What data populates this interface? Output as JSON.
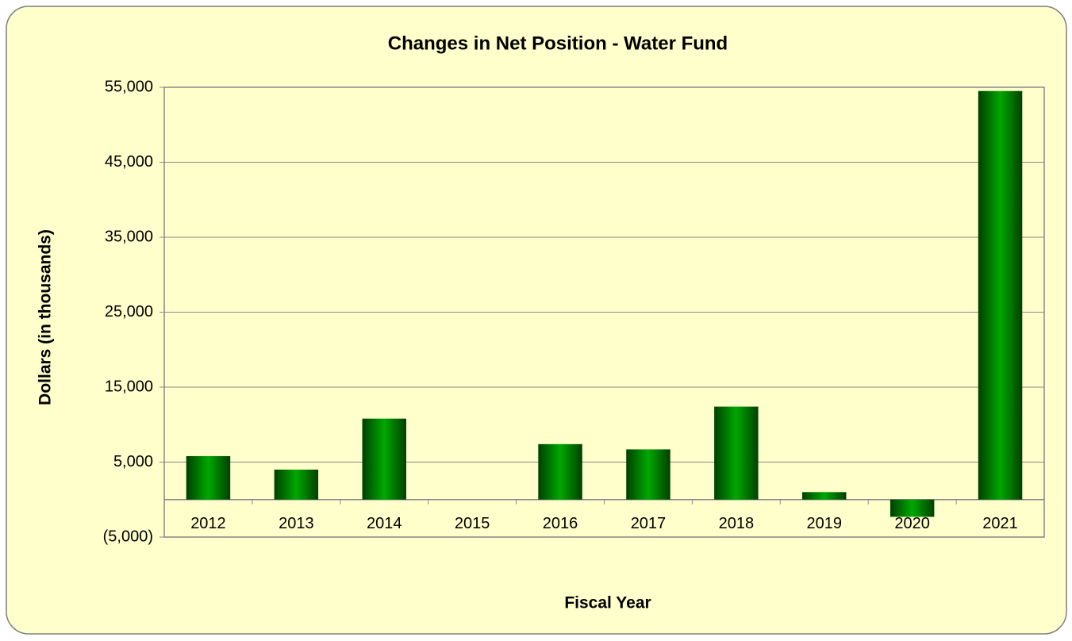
{
  "chart_data": {
    "type": "bar",
    "title": "Changes in Net Position - Water Fund",
    "x_label": "Fiscal Year",
    "y_label": "Dollars (in thousands)",
    "categories": [
      "2012",
      "2013",
      "2014",
      "2015",
      "2016",
      "2017",
      "2018",
      "2019",
      "2020",
      "2021"
    ],
    "values": [
      5800,
      4000,
      10800,
      0,
      7400,
      6700,
      12400,
      1000,
      -2300,
      54500
    ],
    "color": "#008000",
    "ylim": [
      -5000,
      55000
    ],
    "yticks": [
      {
        "value": -5000,
        "label": "(5,000)"
      },
      {
        "value": 5000,
        "label": "5,000"
      },
      {
        "value": 15000,
        "label": "15,000"
      },
      {
        "value": 25000,
        "label": "25,000"
      },
      {
        "value": 35000,
        "label": "35,000"
      },
      {
        "value": 45000,
        "label": "45,000"
      },
      {
        "value": 55000,
        "label": "55,000"
      }
    ],
    "grid": true
  }
}
